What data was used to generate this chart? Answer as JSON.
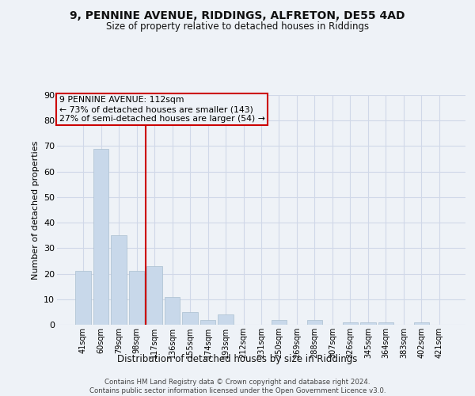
{
  "title1": "9, PENNINE AVENUE, RIDDINGS, ALFRETON, DE55 4AD",
  "title2": "Size of property relative to detached houses in Riddings",
  "xlabel": "Distribution of detached houses by size in Riddings",
  "ylabel": "Number of detached properties",
  "categories": [
    "41sqm",
    "60sqm",
    "79sqm",
    "98sqm",
    "117sqm",
    "136sqm",
    "155sqm",
    "174sqm",
    "193sqm",
    "212sqm",
    "231sqm",
    "250sqm",
    "269sqm",
    "288sqm",
    "307sqm",
    "326sqm",
    "345sqm",
    "364sqm",
    "383sqm",
    "402sqm",
    "421sqm"
  ],
  "values": [
    21,
    69,
    35,
    21,
    23,
    11,
    5,
    2,
    4,
    0,
    0,
    2,
    0,
    2,
    0,
    1,
    1,
    1,
    0,
    1,
    0
  ],
  "bar_color": "#c8d8ea",
  "bar_edge_color": "#aabfcf",
  "grid_color": "#d0d8e8",
  "vline_color": "#cc0000",
  "annotation_box_text": "9 PENNINE AVENUE: 112sqm\n← 73% of detached houses are smaller (143)\n27% of semi-detached houses are larger (54) →",
  "annotation_box_color": "#cc0000",
  "ylim": [
    0,
    90
  ],
  "yticks": [
    0,
    10,
    20,
    30,
    40,
    50,
    60,
    70,
    80,
    90
  ],
  "footnote": "Contains HM Land Registry data © Crown copyright and database right 2024.\nContains public sector information licensed under the Open Government Licence v3.0.",
  "bg_color": "#eef2f7"
}
